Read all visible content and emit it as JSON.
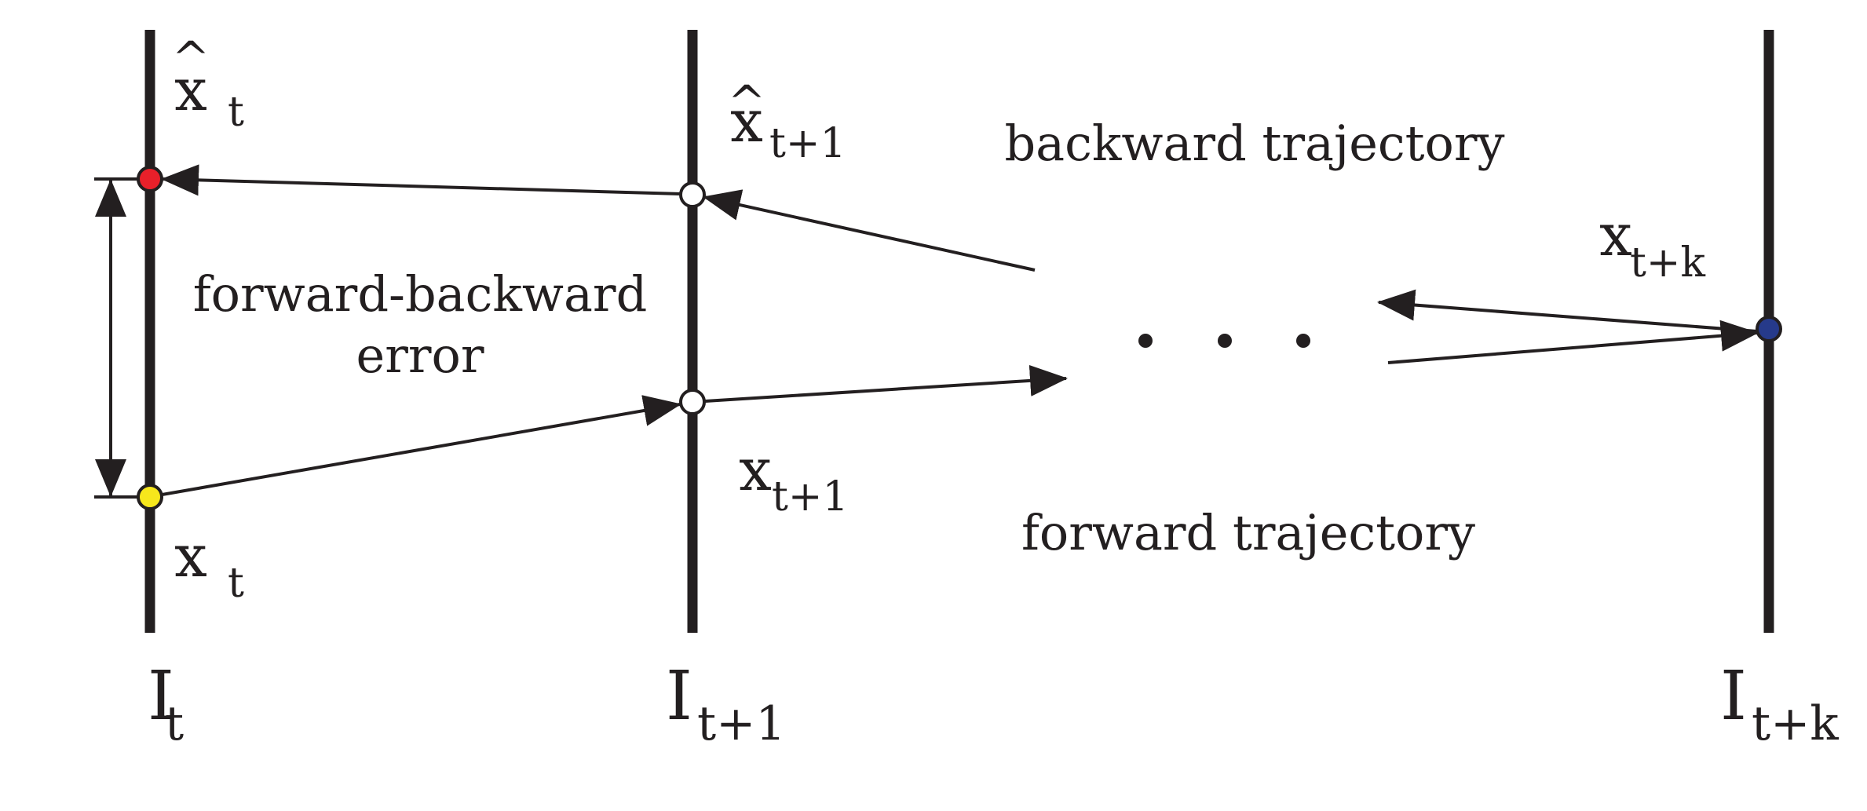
{
  "frames": [
    {
      "base": "I",
      "sub": "t"
    },
    {
      "base": "I",
      "sub": "t+1"
    },
    {
      "base": "I",
      "sub": "t+k"
    }
  ],
  "points": {
    "x_hat_t": {
      "base": "x",
      "hat": "^",
      "sub": "t",
      "color": "#e8202a"
    },
    "x_hat_t1": {
      "base": "x",
      "hat": "^",
      "sub": "t+1",
      "color": "#ffffff"
    },
    "x_t": {
      "base": "x",
      "sub": "t",
      "color": "#f6e71c"
    },
    "x_t1": {
      "base": "x",
      "sub": "t+1",
      "color": "#ffffff"
    },
    "x_tk": {
      "base": "x",
      "sub": "t+k",
      "color": "#263a8a"
    }
  },
  "texts": {
    "backward": "backward trajectory",
    "forward": "forward trajectory",
    "error_line1": "forward-backward",
    "error_line2": "error",
    "ellipsis": "· · ·"
  },
  "colors": {
    "ink": "#231f20"
  }
}
